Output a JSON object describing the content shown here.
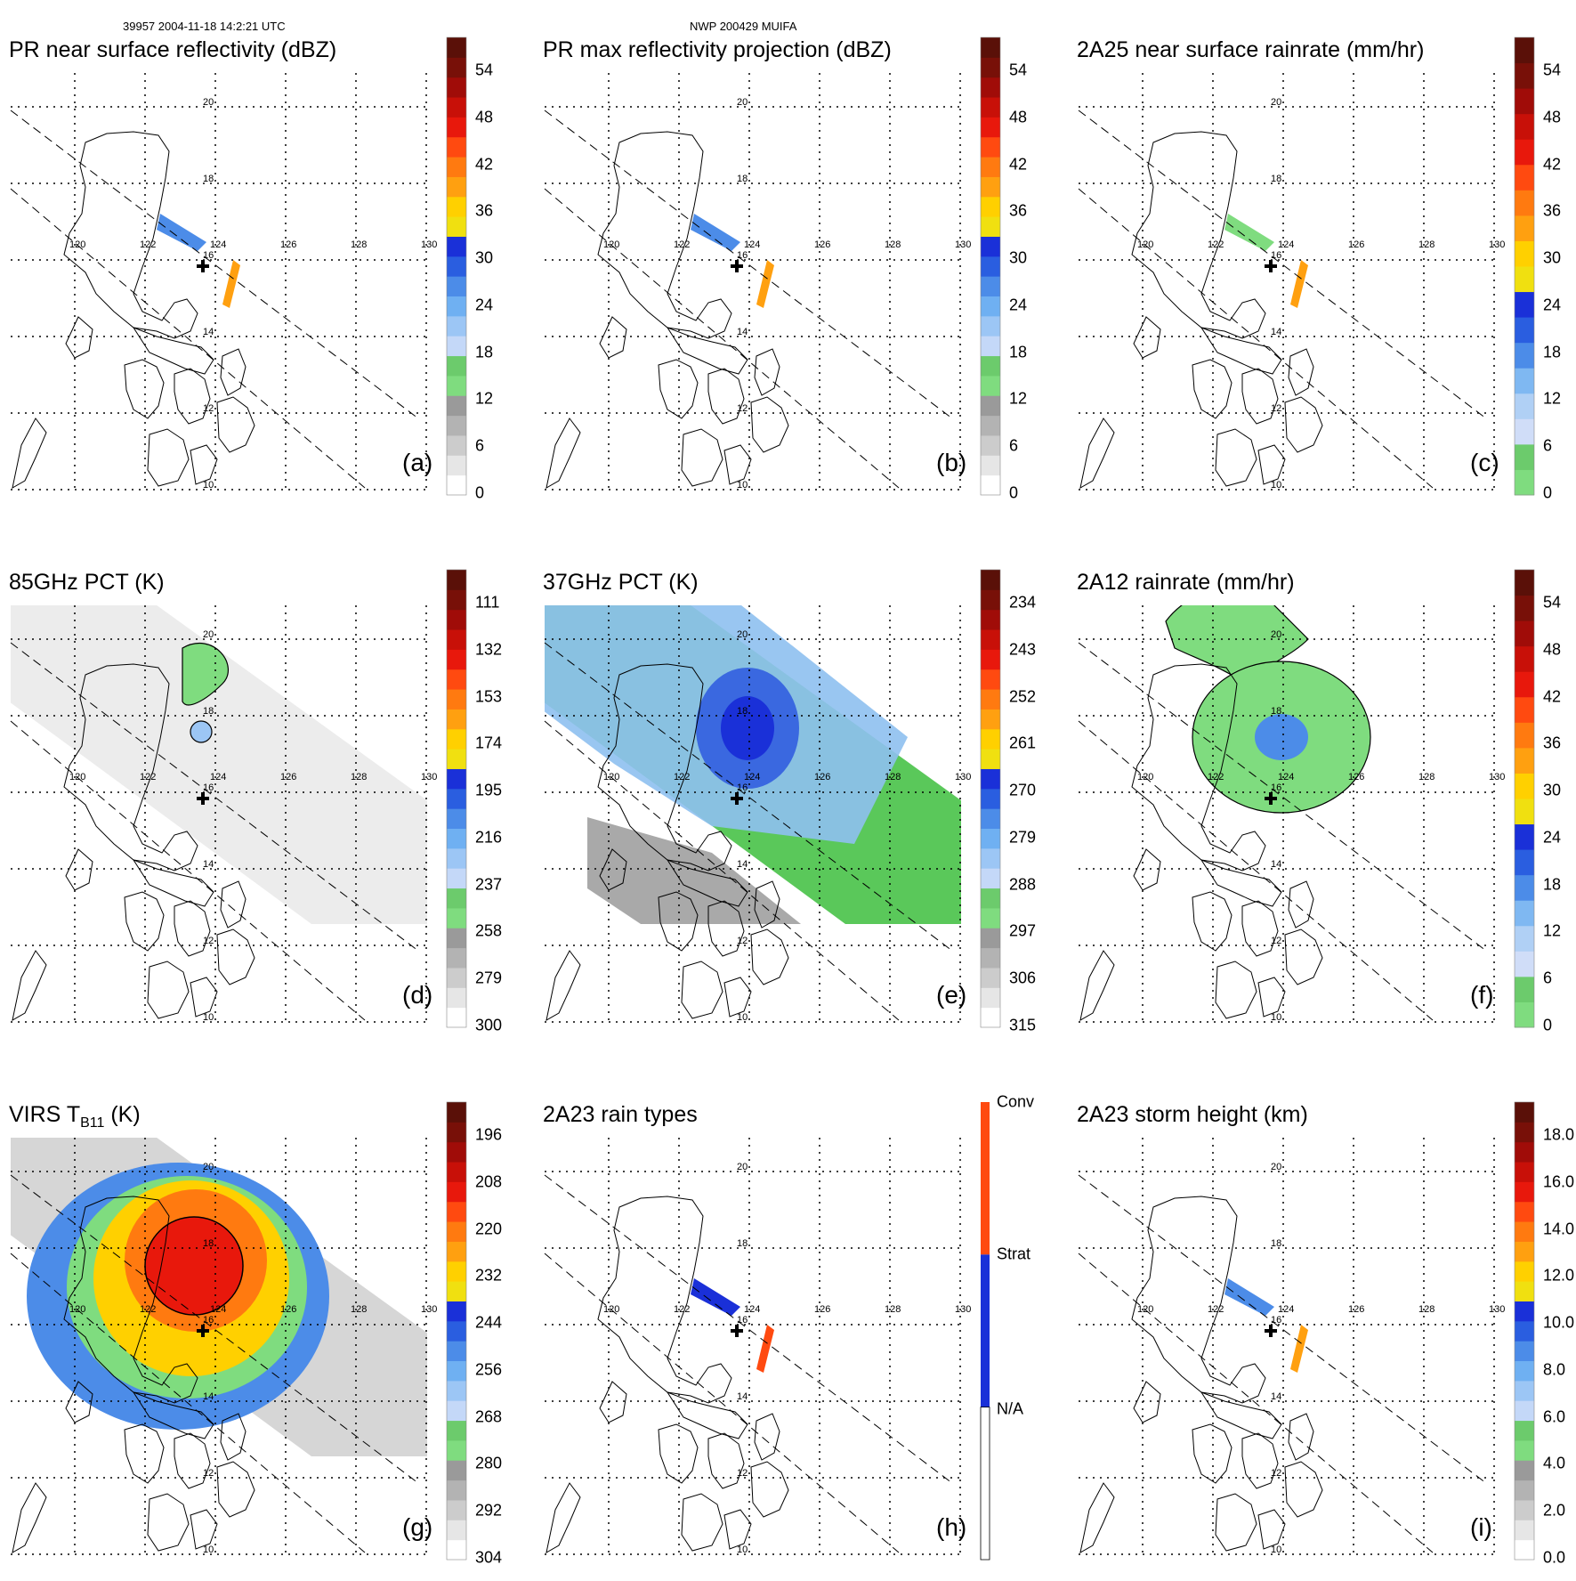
{
  "header": {
    "orbit_time": "39957 2004-11-18 14:2:21 UTC",
    "storm": "NWP 200429 MUIFA"
  },
  "map": {
    "lon_labels": [
      "120",
      "122",
      "124",
      "126",
      "128",
      "130"
    ],
    "lat_labels": [
      "10",
      "12",
      "14",
      "16",
      "18",
      "20"
    ]
  },
  "panels": [
    {
      "id": "a",
      "title": "PR near surface reflectivity (dBZ)",
      "letter": "(a)",
      "ticks": [
        "0",
        "6",
        "12",
        "18",
        "24",
        "30",
        "36",
        "42",
        "48",
        "54"
      ],
      "palette": "dbz",
      "field": "pr_swath"
    },
    {
      "id": "b",
      "title": "PR max reflectivity projection (dBZ)",
      "letter": "(b)",
      "ticks": [
        "0",
        "6",
        "12",
        "18",
        "24",
        "30",
        "36",
        "42",
        "48",
        "54"
      ],
      "palette": "dbz",
      "field": "pr_swath"
    },
    {
      "id": "c",
      "title": "2A25 near surface rainrate (mm/hr)",
      "letter": "(c)",
      "ticks": [
        "0",
        "6",
        "12",
        "18",
        "24",
        "30",
        "36",
        "42",
        "48",
        "54"
      ],
      "palette": "rain",
      "field": "pr_swath"
    },
    {
      "id": "d",
      "title": "85GHz PCT (K)",
      "letter": "(d)",
      "ticks": [
        "300",
        "279",
        "258",
        "237",
        "216",
        "195",
        "174",
        "153",
        "132",
        "111"
      ],
      "palette": "dbz",
      "field": "tmi_gray"
    },
    {
      "id": "e",
      "title": "37GHz PCT (K)",
      "letter": "(e)",
      "ticks": [
        "315",
        "306",
        "297",
        "288",
        "279",
        "270",
        "261",
        "252",
        "243",
        "234"
      ],
      "palette": "dbz",
      "field": "tmi_blue"
    },
    {
      "id": "f",
      "title": "2A12 rainrate (mm/hr)",
      "letter": "(f)",
      "ticks": [
        "0",
        "6",
        "12",
        "18",
        "24",
        "30",
        "36",
        "42",
        "48",
        "54"
      ],
      "palette": "rain",
      "field": "tmi_rain"
    },
    {
      "id": "g",
      "title_main": "VIRS T",
      "title_sub": "B11",
      "title_rest": " (K)",
      "letter": "(g)",
      "ticks": [
        "304",
        "292",
        "280",
        "268",
        "256",
        "244",
        "232",
        "220",
        "208",
        "196"
      ],
      "palette": "dbz",
      "field": "virs"
    },
    {
      "id": "h",
      "title": "2A23 rain types",
      "letter": "(h)",
      "categories": [
        "N/A",
        "Strat",
        "Conv"
      ],
      "palette": "types",
      "field": "pr_swath"
    },
    {
      "id": "i",
      "title": "2A23 storm height (km)",
      "letter": "(i)",
      "ticks": [
        "0.0",
        "2.0",
        "4.0",
        "6.0",
        "8.0",
        "10.0",
        "12.0",
        "14.0",
        "16.0",
        "18.0"
      ],
      "palette": "height",
      "field": "pr_swath"
    }
  ]
}
